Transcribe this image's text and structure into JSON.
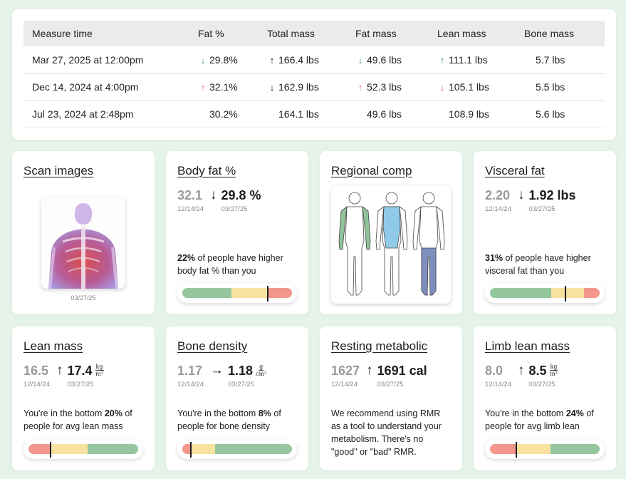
{
  "table": {
    "headers": [
      "Measure time",
      "Fat %",
      "Total mass",
      "Fat mass",
      "Lean mass",
      "Bone mass"
    ],
    "rows": [
      {
        "time": "Mar 27, 2025 at 12:00pm",
        "fat_pct": {
          "value": "29.8%",
          "arrow": "down",
          "color": "green"
        },
        "total_mass": {
          "value": "166.4 lbs",
          "arrow": "up",
          "color": "black"
        },
        "fat_mass": {
          "value": "49.6 lbs",
          "arrow": "down",
          "color": "green"
        },
        "lean_mass": {
          "value": "111.1 lbs",
          "arrow": "up",
          "color": "green"
        },
        "bone_mass": {
          "value": "5.7 lbs",
          "arrow": "none",
          "color": "none"
        }
      },
      {
        "time": "Dec 14, 2024 at 4:00pm",
        "fat_pct": {
          "value": "32.1%",
          "arrow": "up",
          "color": "red"
        },
        "total_mass": {
          "value": "162.9 lbs",
          "arrow": "down",
          "color": "black"
        },
        "fat_mass": {
          "value": "52.3 lbs",
          "arrow": "up",
          "color": "red"
        },
        "lean_mass": {
          "value": "105.1 lbs",
          "arrow": "down",
          "color": "red"
        },
        "bone_mass": {
          "value": "5.5 lbs",
          "arrow": "none",
          "color": "none"
        }
      },
      {
        "time": "Jul 23, 2024 at 2:48pm",
        "fat_pct": {
          "value": "30.2%",
          "arrow": "none",
          "color": "none"
        },
        "total_mass": {
          "value": "164.1 lbs",
          "arrow": "none",
          "color": "none"
        },
        "fat_mass": {
          "value": "49.6 lbs",
          "arrow": "none",
          "color": "none"
        },
        "lean_mass": {
          "value": "108.9 lbs",
          "arrow": "none",
          "color": "none"
        },
        "bone_mass": {
          "value": "5.6 lbs",
          "arrow": "none",
          "color": "none"
        }
      }
    ]
  },
  "colors": {
    "green": "#4ca35a",
    "red": "#e8725e",
    "bar_red": "#f2978a",
    "bar_yellow": "#f7e2a0",
    "bar_green": "#94c79d",
    "figure_green": "#8fc49a",
    "figure_blue": "#8fcbe9",
    "figure_navy": "#7d8fbf"
  },
  "scan_images": {
    "title": "Scan images",
    "date": "03/27/25"
  },
  "body_fat": {
    "title": "Body fat %",
    "prev": "32.1",
    "prev_date": "12/14/24",
    "arrow": "↓",
    "current": "29.8 %",
    "current_date": "03/27/25",
    "desc_bold": "22%",
    "desc_rest": " of people have higher body fat % than you",
    "bar": {
      "segments": [
        [
          "green",
          0.45
        ],
        [
          "yellow",
          0.33
        ],
        [
          "red",
          0.22
        ]
      ],
      "marker": 0.78
    }
  },
  "regional_comp": {
    "title": "Regional comp"
  },
  "visceral_fat": {
    "title": "Visceral fat",
    "prev": "2.20",
    "prev_date": "12/14/24",
    "arrow": "↓",
    "current": "1.92",
    "current_unit": "lbs",
    "current_date": "03/27/25",
    "desc_bold": "31%",
    "desc_rest": " of people have higher visceral fat than you",
    "bar": {
      "segments": [
        [
          "green",
          0.56
        ],
        [
          "yellow",
          0.3
        ],
        [
          "red",
          0.14
        ]
      ],
      "marker": 0.69
    }
  },
  "lean_mass": {
    "title": "Lean mass",
    "prev": "16.5",
    "prev_date": "12/14/24",
    "arrow": "↑",
    "current": "17.4",
    "unit_num": "kg",
    "unit_den": "m²",
    "current_date": "03/27/25",
    "desc_pre": "You're in the bottom ",
    "desc_bold": "20%",
    "desc_rest": " of people for avg lean mass",
    "bar": {
      "segments": [
        [
          "red",
          0.2
        ],
        [
          "yellow",
          0.34
        ],
        [
          "green",
          0.46
        ]
      ],
      "marker": 0.2
    }
  },
  "bone_density": {
    "title": "Bone density",
    "prev": "1.17",
    "prev_date": "12/14/24",
    "arrow": "→",
    "current": "1.18",
    "unit_num": "g",
    "unit_den": "cm²",
    "current_date": "03/27/25",
    "desc_pre": "You're in the bottom ",
    "desc_bold": "8%",
    "desc_rest": " of people for bone density",
    "bar": {
      "segments": [
        [
          "red",
          0.08
        ],
        [
          "yellow",
          0.22
        ],
        [
          "green",
          0.7
        ]
      ],
      "marker": 0.08
    }
  },
  "resting_metabolic": {
    "title": "Resting metabolic",
    "prev": "1627",
    "prev_date": "12/14/24",
    "arrow": "↑",
    "current": "1691 cal",
    "current_date": "03/27/25",
    "desc": "We recommend using RMR as a tool to understand your metabolism. There's no \"good\" or \"bad\" RMR."
  },
  "limb_lean_mass": {
    "title": "Limb lean mass",
    "prev": "8.0",
    "prev_date": "12/14/24",
    "arrow": "↑",
    "current": "8.5",
    "unit_num": "kg",
    "unit_den": "m²",
    "current_date": "03/27/25",
    "desc_pre": "You're in the bottom ",
    "desc_bold": "24%",
    "desc_rest": " of people for avg limb lean",
    "bar": {
      "segments": [
        [
          "red",
          0.24
        ],
        [
          "yellow",
          0.31
        ],
        [
          "green",
          0.45
        ]
      ],
      "marker": 0.24
    }
  }
}
